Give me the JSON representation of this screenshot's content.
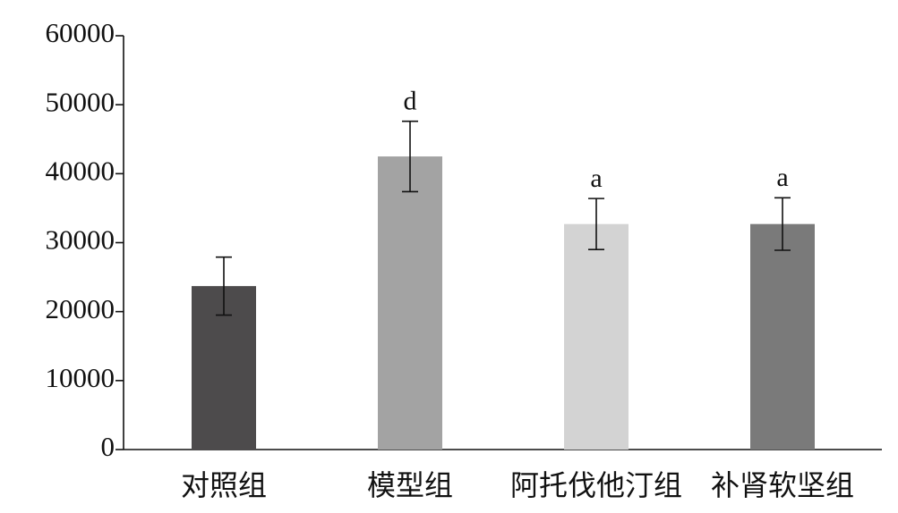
{
  "chart_data": {
    "type": "bar",
    "categories": [
      "对照组",
      "模型组",
      "阿托伐他汀组",
      "补肾软坚组"
    ],
    "values": [
      23700,
      42500,
      32700,
      32700
    ],
    "errors": [
      4200,
      5100,
      3700,
      3800
    ],
    "annotations": [
      null,
      "d",
      "a",
      "a"
    ],
    "colors": [
      "#4d4b4c",
      "#a3a3a3",
      "#d3d3d3",
      "#7a7a7a"
    ],
    "ylim": [
      0,
      60000
    ],
    "yticks": [
      0,
      10000,
      20000,
      30000,
      40000,
      50000,
      60000
    ],
    "grid": false
  }
}
